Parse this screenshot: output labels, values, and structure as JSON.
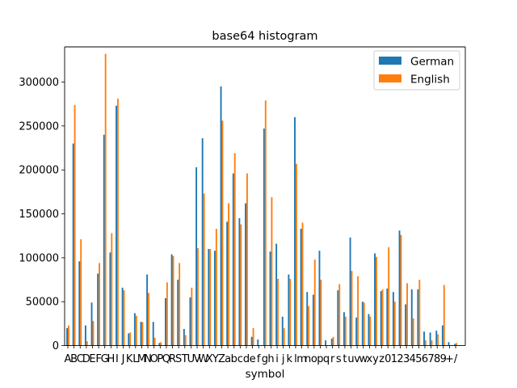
{
  "chart_data": {
    "type": "bar",
    "title": "base64 histogram",
    "xlabel": "symbol",
    "ylabel": "",
    "ylim": [
      0,
      340000
    ],
    "yticks": [
      0,
      50000,
      100000,
      150000,
      200000,
      250000,
      300000
    ],
    "ytick_labels": [
      "0",
      "50000",
      "100000",
      "150000",
      "200000",
      "250000",
      "300000"
    ],
    "grid": false,
    "legend_position": "top-right",
    "categories": [
      "A",
      "B",
      "C",
      "D",
      "E",
      "F",
      "G",
      "H",
      "I",
      "J",
      "K",
      "L",
      "M",
      "N",
      "O",
      "P",
      "Q",
      "R",
      "S",
      "T",
      "U",
      "V",
      "W",
      "X",
      "Y",
      "Z",
      "a",
      "b",
      "c",
      "d",
      "e",
      "f",
      "g",
      "h",
      "i",
      "j",
      "k",
      "l",
      "m",
      "n",
      "o",
      "p",
      "q",
      "r",
      "s",
      "t",
      "u",
      "v",
      "w",
      "x",
      "y",
      "z",
      "0",
      "1",
      "2",
      "3",
      "4",
      "5",
      "6",
      "7",
      "8",
      "9",
      "+",
      "/"
    ],
    "series": [
      {
        "name": "German",
        "color": "#1f77b4",
        "values": [
          20000,
          230000,
          96000,
          23000,
          49000,
          82000,
          240000,
          106000,
          273000,
          66000,
          14000,
          37000,
          27000,
          81000,
          27000,
          3000,
          54000,
          104000,
          75000,
          19000,
          55000,
          203000,
          236000,
          110000,
          108000,
          295000,
          141000,
          196000,
          145000,
          162000,
          10000,
          7000,
          247000,
          107000,
          116000,
          33000,
          81000,
          260000,
          133000,
          61000,
          58000,
          108000,
          6000,
          8000,
          63000,
          38000,
          123000,
          32000,
          50000,
          36000,
          105000,
          62000,
          65000,
          61000,
          131000,
          47000,
          64000,
          64000,
          16000,
          15000,
          17000,
          23000,
          4000,
          2000
        ]
      },
      {
        "name": "English",
        "color": "#ff7f0e",
        "values": [
          23000,
          274000,
          121000,
          5000,
          28000,
          94000,
          332000,
          128000,
          281000,
          63000,
          15000,
          34000,
          27000,
          60000,
          9000,
          4000,
          72000,
          102000,
          94000,
          12000,
          66000,
          111000,
          173000,
          110000,
          133000,
          256000,
          162000,
          219000,
          138000,
          196000,
          20000,
          0,
          279000,
          169000,
          76000,
          20000,
          76000,
          207000,
          140000,
          45000,
          98000,
          75000,
          0,
          10000,
          70000,
          33000,
          85000,
          79000,
          49000,
          33000,
          101000,
          64000,
          112000,
          50000,
          126000,
          71000,
          31000,
          75000,
          6000,
          6000,
          13000,
          69000,
          0,
          3000
        ]
      }
    ]
  }
}
